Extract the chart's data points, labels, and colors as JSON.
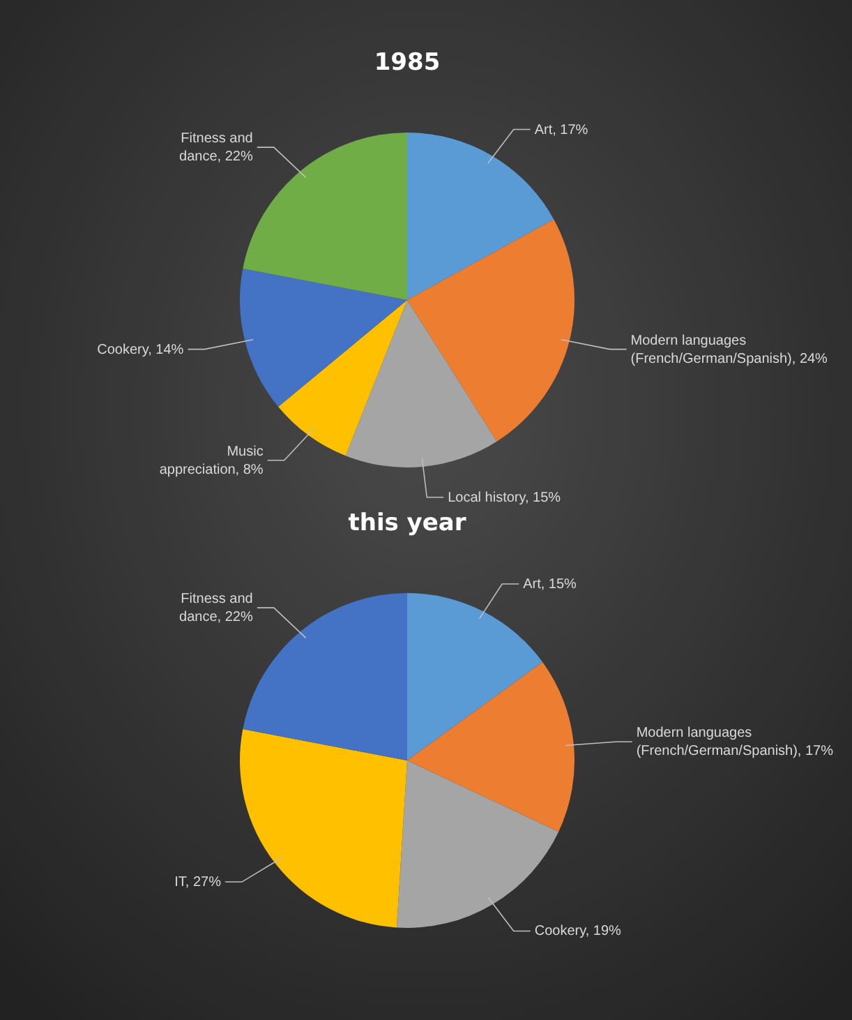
{
  "chart_data": [
    {
      "type": "pie",
      "title": "1985",
      "categories": [
        "Art",
        "Modern languages (French/German/Spanish)",
        "Local history",
        "Music appreciation",
        "Cookery",
        "Fitness and dance"
      ],
      "values": [
        17,
        24,
        15,
        8,
        14,
        22
      ],
      "value_labels": [
        "17%",
        "24%",
        "15%",
        "8%",
        "14%",
        "22%"
      ],
      "colors": [
        "#5b9bd5",
        "#ed7d31",
        "#a5a5a5",
        "#ffc000",
        "#4472c4",
        "#70ad47"
      ]
    },
    {
      "type": "pie",
      "title": "this year",
      "categories": [
        "Art",
        "Modern languages (French/German/Spanish)",
        "Cookery",
        "IT",
        "Fitness and dance"
      ],
      "values": [
        15,
        17,
        19,
        27,
        22
      ],
      "value_labels": [
        "15%",
        "17%",
        "19%",
        "27%",
        "22%"
      ],
      "colors": [
        "#5b9bd5",
        "#ed7d31",
        "#a5a5a5",
        "#ffc000",
        "#4472c4"
      ]
    }
  ]
}
